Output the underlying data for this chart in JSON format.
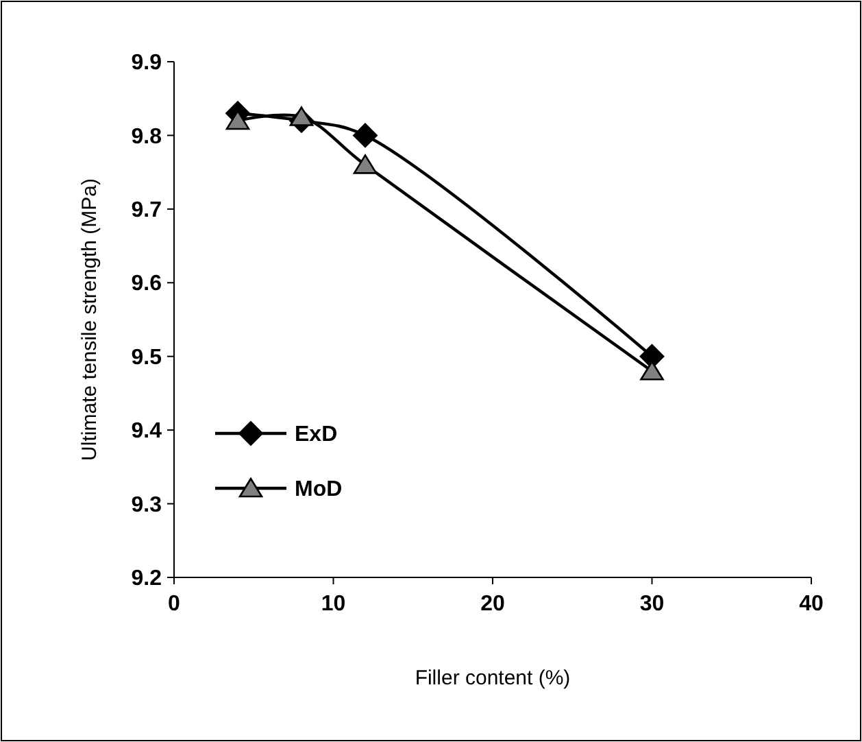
{
  "chart_data": {
    "type": "line",
    "xlabel": "Filler content (%)",
    "ylabel": "Ultimate tensile strength (MPa)",
    "x": [
      4,
      8,
      12,
      30
    ],
    "series": [
      {
        "name": "ExD",
        "color": "#000000",
        "marker": "diamond",
        "values": [
          9.83,
          9.82,
          9.8,
          9.5
        ]
      },
      {
        "name": "MoD",
        "color": "#808080",
        "marker": "triangle",
        "values": [
          9.82,
          9.825,
          9.76,
          9.48
        ]
      }
    ],
    "xlim": [
      0,
      40
    ],
    "xticks": [
      0,
      10,
      20,
      30,
      40
    ],
    "ylim": [
      9.2,
      9.9
    ],
    "yticks": [
      {
        "value": 9.2,
        "label": "9.2"
      },
      {
        "value": 9.3,
        "label": "9.3"
      },
      {
        "value": 9.4,
        "label": "9.4"
      },
      {
        "value": 9.5,
        "label": "9.5"
      },
      {
        "value": 9.6,
        "label": "9.6"
      },
      {
        "value": 9.7,
        "label": "9.7"
      },
      {
        "value": 9.8,
        "label": "9.8"
      },
      {
        "value": 9.9,
        "label": "9.9"
      }
    ],
    "grid": false,
    "legend": "bottom left",
    "line_style": "solid"
  }
}
